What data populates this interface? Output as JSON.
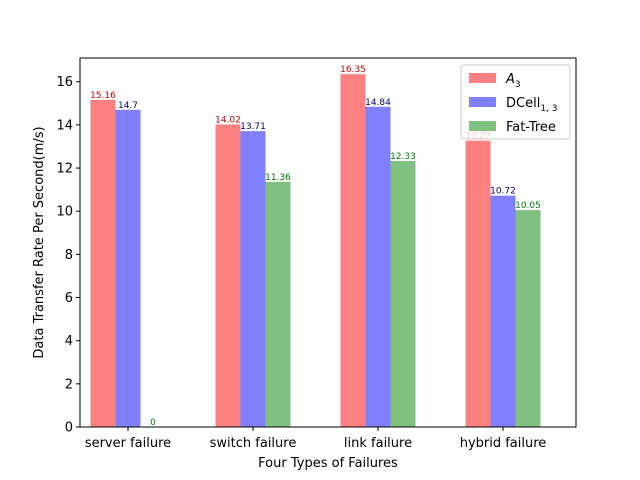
{
  "chart_data": {
    "type": "bar",
    "title": "",
    "xlabel": "Four Types of Failures",
    "ylabel": "Data Transfer Rate Per Second(m/s)",
    "categories": [
      "server failure",
      "switch failure",
      "link failure",
      "hybrid failure"
    ],
    "ylim": [
      0,
      17.1
    ],
    "yticks": [
      0,
      2,
      4,
      6,
      8,
      10,
      12,
      14,
      16
    ],
    "grid": false,
    "legend_position": "top-right",
    "series": [
      {
        "name": "A3",
        "name_base": "A",
        "name_sub": "3",
        "color": "#ff8080",
        "label_color": "#cc0000",
        "values": [
          15.16,
          14.02,
          16.35,
          13.27
        ],
        "labels": [
          "15.16",
          "14.02",
          "16.35",
          "13.27"
        ]
      },
      {
        "name": "DCell1, 3",
        "name_base": "DCell",
        "name_sub": "1, 3",
        "color": "#8080ff",
        "label_color": "#000080",
        "values": [
          14.7,
          13.71,
          14.84,
          10.72
        ],
        "labels": [
          "14.7",
          "13.71",
          "14.84",
          "10.72"
        ]
      },
      {
        "name": "Fat-Tree",
        "name_base": "Fat-Tree",
        "name_sub": "",
        "color": "#80c080",
        "label_color": "#008000",
        "values": [
          0,
          11.36,
          12.33,
          10.05
        ],
        "labels": [
          "0",
          "11.36",
          "12.33",
          "10.05"
        ]
      }
    ]
  }
}
